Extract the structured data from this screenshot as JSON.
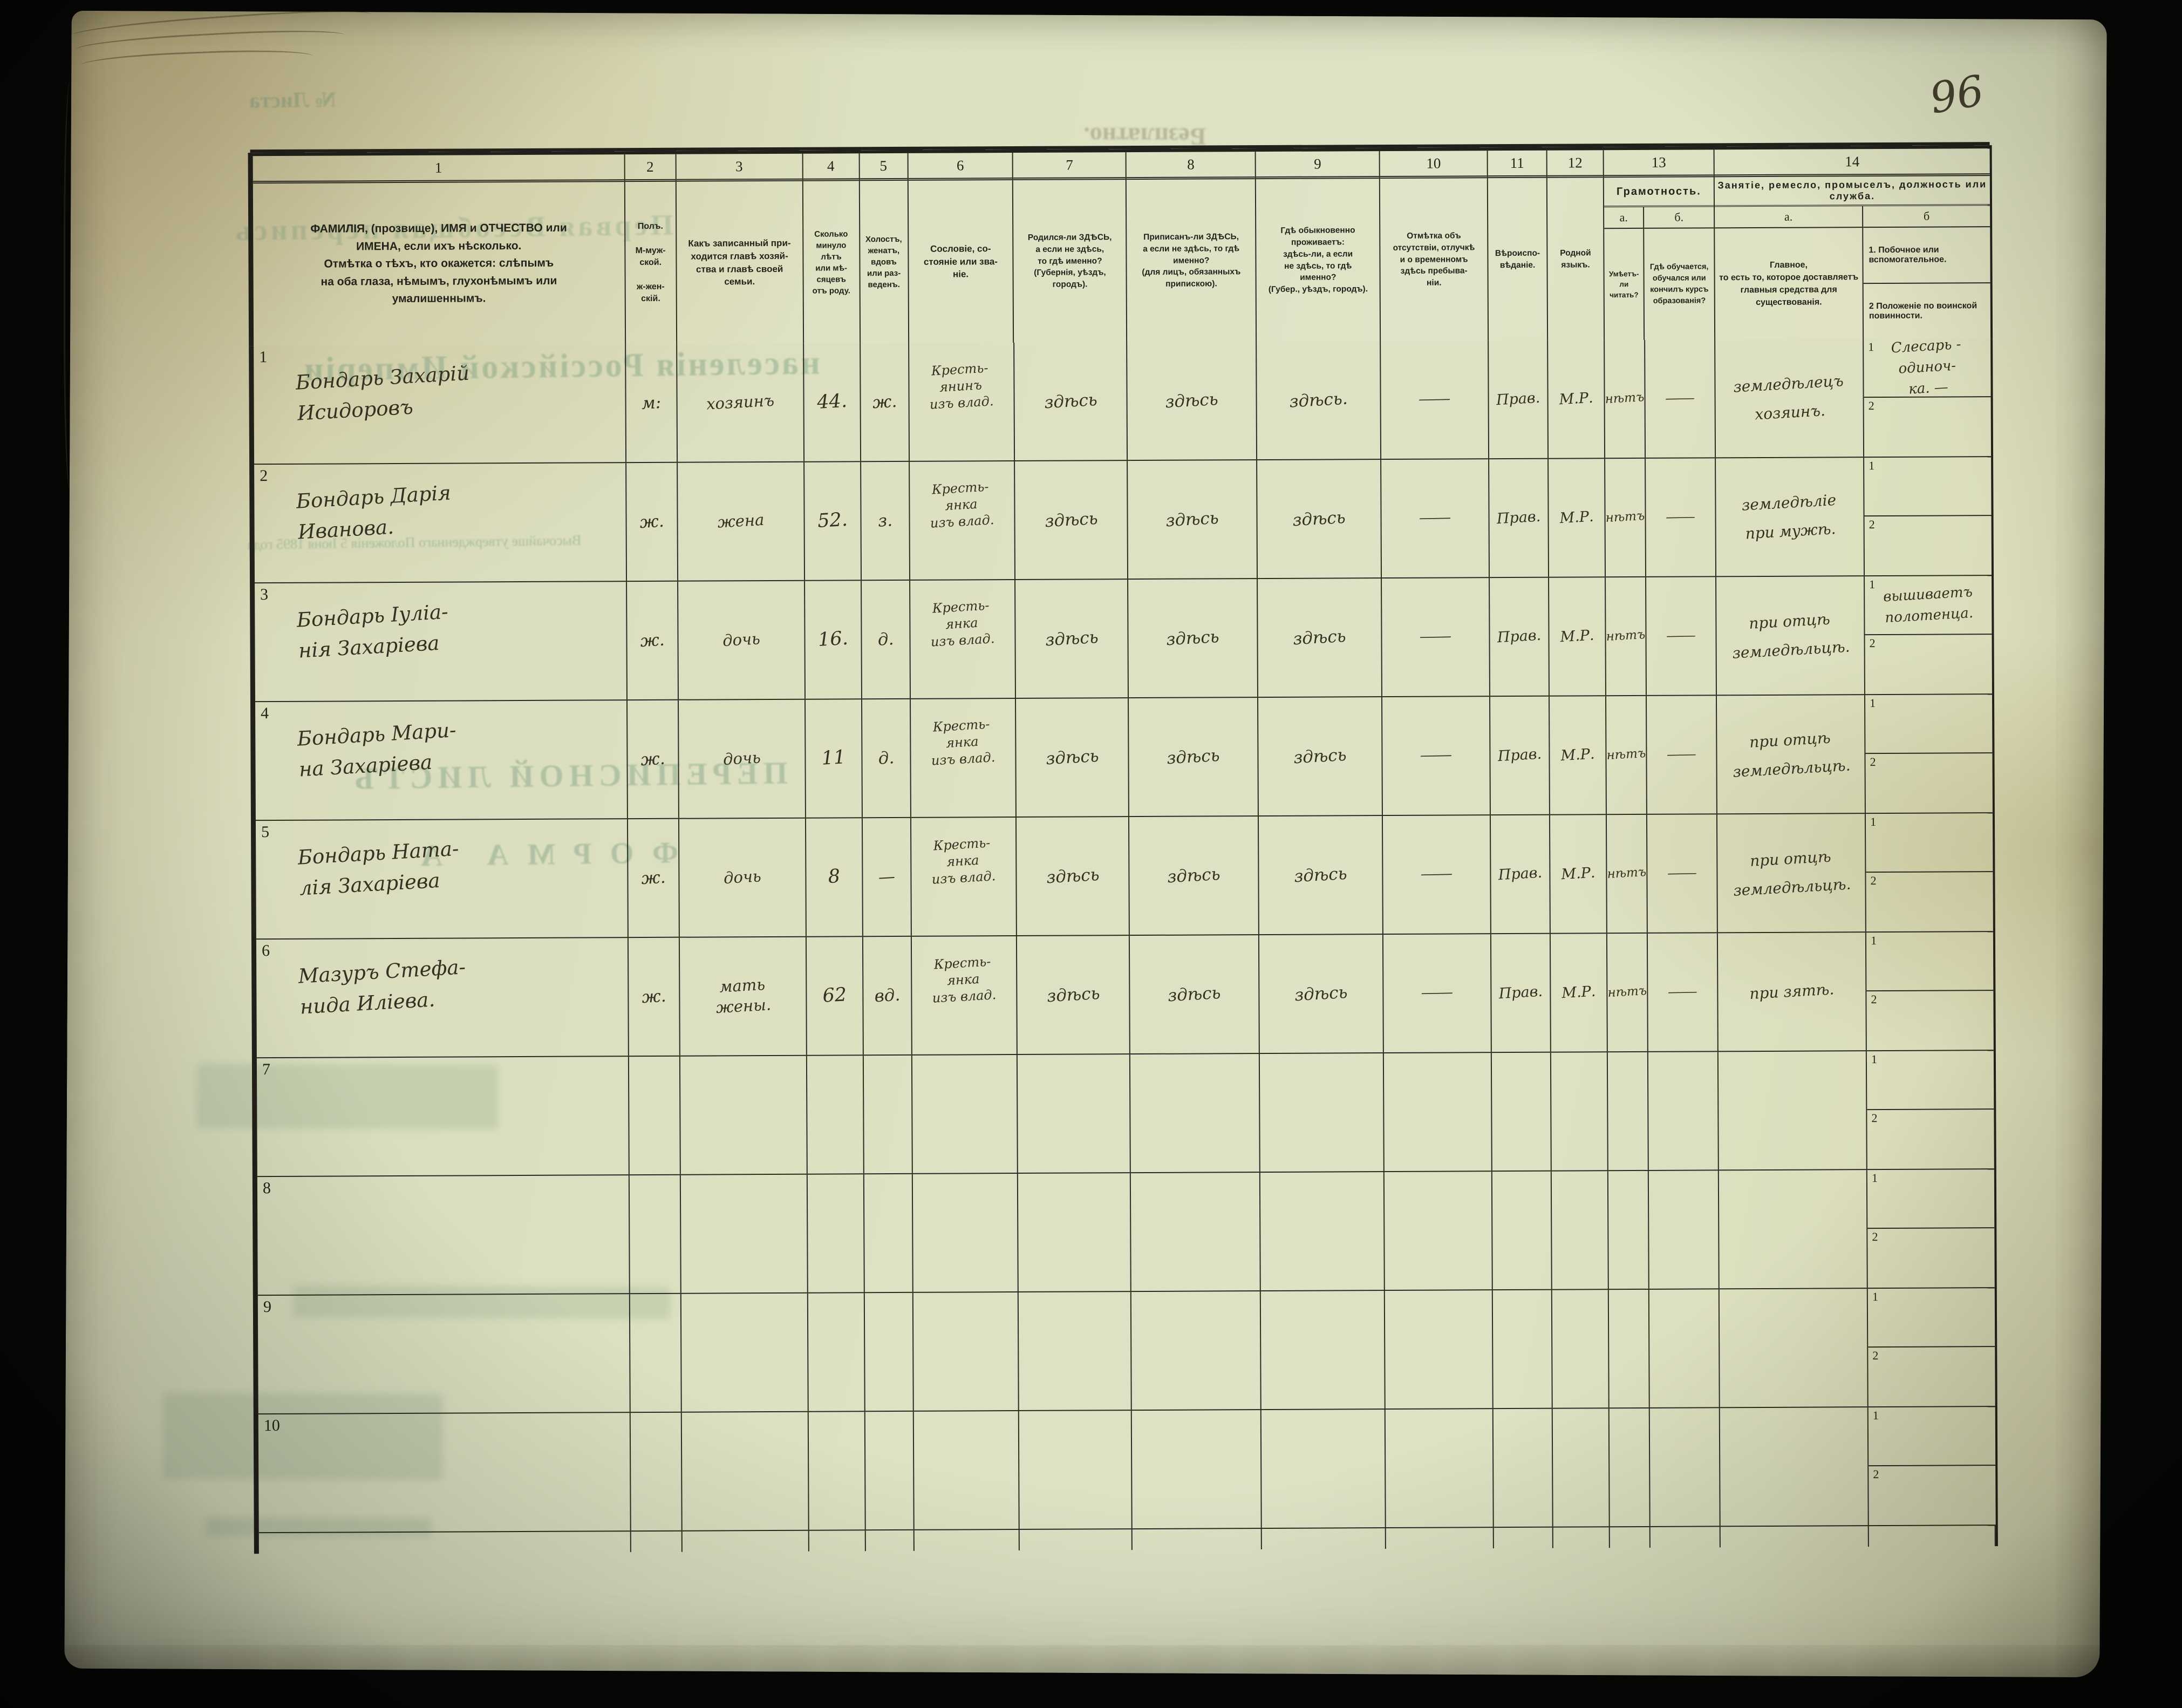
{
  "page": {
    "number": "96"
  },
  "labels": {
    "side1": "1",
    "side2": "2"
  },
  "bleedthrough": {
    "stamp": "Безплатно.",
    "sheet_no": "№ Листа",
    "title1": "Первая Всеобщая перепись",
    "title2": "населенія Россійской Имперіи",
    "law_line": "Высочайше утвержденнаго Положенія 5 Іюня 1895 года",
    "list_title": "ПЕРЕПИСНОЙ ЛИСТЪ",
    "forma": "ФОРМА А"
  },
  "header": {
    "columns": [
      {
        "num": "1",
        "text": "ФАМИЛІЯ, (прозвище), ИМЯ и ОТЧЕСТВО или\nИМЕНА, если ихъ нѣсколько.\nОтмѣтка о тѣхъ, кто окажется: слѣпымъ\nна оба глаза, нѣмымъ, глухонѣмымъ или\nумалишеннымъ."
      },
      {
        "num": "2",
        "text": "Полъ.\n\nМ-муж-\nской.\n\nж-жен-\nскій."
      },
      {
        "num": "3",
        "text": "Какъ записанный при-\nходится главѣ хозяй-\nства и главѣ своей\nсемьи."
      },
      {
        "num": "4",
        "text": "Сколько\nминуло\nлѣтъ\nили мѣ-\nсяцевъ\nотъ роду."
      },
      {
        "num": "5",
        "text": "Холостъ,\nженатъ,\nвдовъ\nили раз-\nведенъ."
      },
      {
        "num": "6",
        "text": "Сословіе, со-\nстояніе или зва-\nніе."
      },
      {
        "num": "7",
        "text": "Родился-ли ЗДѢСЬ,\nа если не здѣсь,\nто гдѣ именно?\n(Губернія, уѣздъ, городъ)."
      },
      {
        "num": "8",
        "text": "Приписанъ-ли ЗДѢСЬ,\nа если не здѣсь, то гдѣ\nименно?\n(для лицъ, обязанныхъ\nприпискою)."
      },
      {
        "num": "9",
        "text": "Гдѣ обыкновенно\nпроживаетъ:\nздѣсь-ли, а если\nне здѣсь, то гдѣ\nименно?\n(Губер., уѣздъ, городъ)."
      },
      {
        "num": "10",
        "text": "Отмѣтка объ\nотсутствіи, отлучкѣ\nи о временномъ\nздѣсь пребыва-\nніи."
      },
      {
        "num": "11",
        "text": "Вѣроиспо-\nвѣданіе."
      },
      {
        "num": "12",
        "text": "Родной\nязыкъ."
      },
      {
        "num": "13",
        "title": "Грамотность.",
        "sub_a_label": "а.",
        "sub_b_label": "б.",
        "sub_a": "Умѣетъ-\nли\nчитать?",
        "sub_b": "Гдѣ обучается,\nобучался или\nкончилъ курсъ\nобразованія?"
      },
      {
        "num": "14",
        "title": "Занятіе, ремесло, промыселъ, должность или служба.",
        "sub_a_label": "а.",
        "sub_b_label": "б",
        "sub_a": "Главное,\nто есть то, которое доставляетъ\nглавныя средства для существованія.",
        "sub_b_1": "1.  Побочное или вспомогательное.",
        "sub_b_2": "2  Положеніе по воинской повинности."
      }
    ]
  },
  "rows": [
    {
      "num": "1",
      "name": "Бондарь Захарій\nИсидоровъ",
      "sex": "м:",
      "relation": "хозяинъ",
      "age": "44.",
      "marital": "ж.",
      "estate": "Кресть-\nянинъ\nизъ влад.",
      "born": "здѣсь",
      "registered": "здѣсь",
      "resides": "здѣсь.",
      "absence": "—",
      "faith": "Прав.",
      "language": "М.Р.",
      "reads": "нѣтъ",
      "education": "—",
      "occupation": "земледѣлецъ\nхозяинъ.",
      "side1": "Слесарь - одиноч-\nка.  —",
      "side2": ""
    },
    {
      "num": "2",
      "name": "Бондарь Дарія\nИванова.",
      "sex": "ж.",
      "relation": "жена",
      "age": "52.",
      "marital": "з.",
      "estate": "Кресть-\nянка\nизъ влад.",
      "born": "здѣсь",
      "registered": "здѣсь",
      "resides": "здѣсь",
      "absence": "—",
      "faith": "Прав.",
      "language": "М.Р.",
      "reads": "нѣтъ",
      "education": "—",
      "occupation": "земледѣліе\nпри мужѣ.",
      "side1": "",
      "side2": ""
    },
    {
      "num": "3",
      "name": "Бондарь Іуліа-\nнія Захаріева",
      "sex": "ж.",
      "relation": "дочь",
      "age": "16.",
      "marital": "д.",
      "estate": "Кресть-\nянка\nизъ влад.",
      "born": "здѣсь",
      "registered": "здѣсь",
      "resides": "здѣсь",
      "absence": "—",
      "faith": "Прав.",
      "language": "М.Р.",
      "reads": "нѣтъ",
      "education": "—",
      "occupation": "при отцѣ\nземледѣльцѣ.",
      "side1": "вышиваетъ\nполотенца.",
      "side2": ""
    },
    {
      "num": "4",
      "name": "Бондарь Мари-\nна Захаріева",
      "sex": "ж.",
      "relation": "дочь",
      "age": "11",
      "marital": "д.",
      "estate": "Кресть-\nянка\nизъ влад.",
      "born": "здѣсь",
      "registered": "здѣсь",
      "resides": "здѣсь",
      "absence": "—",
      "faith": "Прав.",
      "language": "М.Р.",
      "reads": "нѣтъ",
      "education": "—",
      "occupation": "при отцѣ\nземледѣльцѣ.",
      "side1": "",
      "side2": ""
    },
    {
      "num": "5",
      "name": "Бондарь Ната-\nлія Захаріева",
      "sex": "ж.",
      "relation": "дочь",
      "age": "8",
      "marital": "—",
      "estate": "Кресть-\nянка\nизъ влад.",
      "born": "здѣсь",
      "registered": "здѣсь",
      "resides": "здѣсь",
      "absence": "—",
      "faith": "Прав.",
      "language": "М.Р.",
      "reads": "нѣтъ",
      "education": "—",
      "occupation": "при отцѣ\nземледѣльцѣ.",
      "side1": "",
      "side2": ""
    },
    {
      "num": "6",
      "name": "Мазуръ Стефа-\nнида Иліева.",
      "sex": "ж.",
      "relation": "мать\nжены.",
      "age": "62",
      "marital": "вд.",
      "estate": "Кресть-\nянка\nизъ влад.",
      "born": "здѣсь",
      "registered": "здѣсь",
      "resides": "здѣсь",
      "absence": "—",
      "faith": "Прав.",
      "language": "М.Р.",
      "reads": "нѣтъ",
      "education": "—",
      "occupation": "при зятѣ.",
      "side1": "",
      "side2": ""
    },
    {
      "num": "7",
      "name": "",
      "sex": "",
      "relation": "",
      "age": "",
      "marital": "",
      "estate": "",
      "born": "",
      "registered": "",
      "resides": "",
      "absence": "",
      "faith": "",
      "language": "",
      "reads": "",
      "education": "",
      "occupation": "",
      "side1": "",
      "side2": ""
    },
    {
      "num": "8",
      "name": "",
      "sex": "",
      "relation": "",
      "age": "",
      "marital": "",
      "estate": "",
      "born": "",
      "registered": "",
      "resides": "",
      "absence": "",
      "faith": "",
      "language": "",
      "reads": "",
      "education": "",
      "occupation": "",
      "side1": "",
      "side2": ""
    },
    {
      "num": "9",
      "name": "",
      "sex": "",
      "relation": "",
      "age": "",
      "marital": "",
      "estate": "",
      "born": "",
      "registered": "",
      "resides": "",
      "absence": "",
      "faith": "",
      "language": "",
      "reads": "",
      "education": "",
      "occupation": "",
      "side1": "",
      "side2": ""
    },
    {
      "num": "10",
      "name": "",
      "sex": "",
      "relation": "",
      "age": "",
      "marital": "",
      "estate": "",
      "born": "",
      "registered": "",
      "resides": "",
      "absence": "",
      "faith": "",
      "language": "",
      "reads": "",
      "education": "",
      "occupation": "",
      "side1": "",
      "side2": ""
    }
  ]
}
